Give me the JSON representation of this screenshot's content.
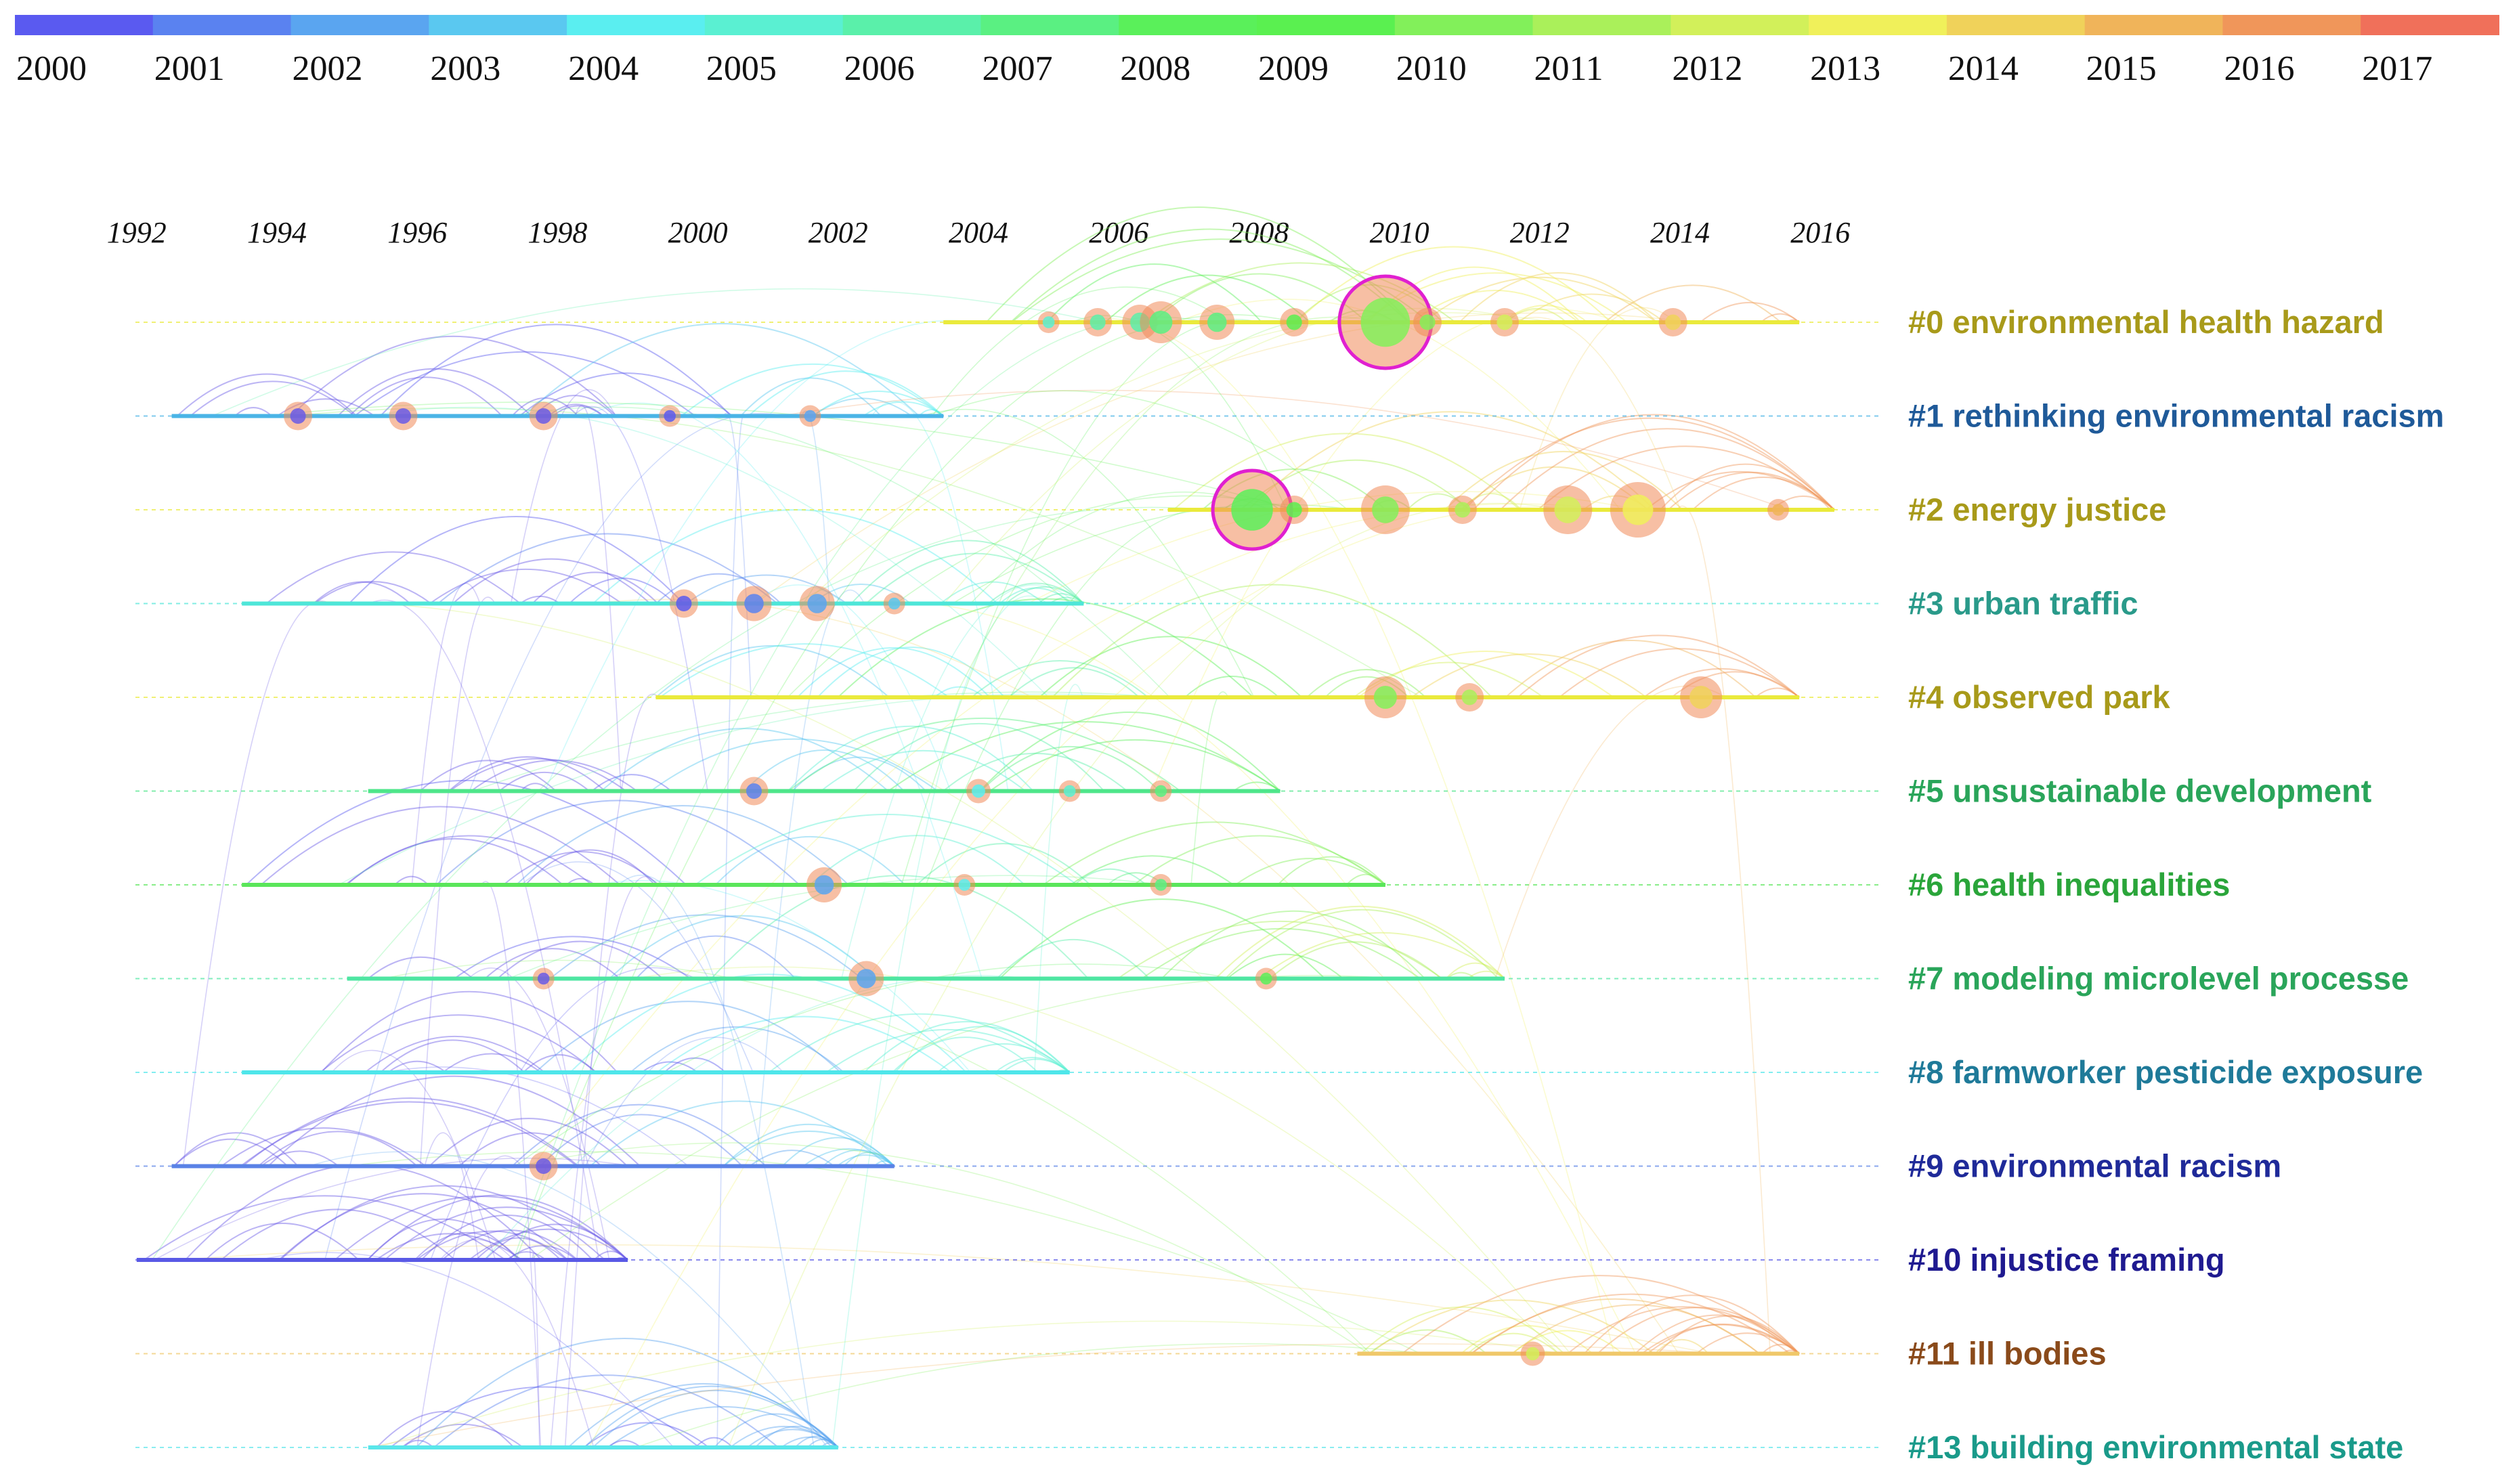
{
  "chart_data": {
    "type": "timeline",
    "legend": {
      "years": [
        "2000",
        "2001",
        "2002",
        "2003",
        "2004",
        "2005",
        "2006",
        "2007",
        "2008",
        "2009",
        "2010",
        "2011",
        "2012",
        "2013",
        "2014",
        "2015",
        "2016",
        "2017"
      ],
      "colors": [
        "#5a5af0",
        "#5a82f0",
        "#5aa5f0",
        "#5ac8f0",
        "#5aeef0",
        "#5af0d2",
        "#5af0aa",
        "#5af082",
        "#5af05a",
        "#5af050",
        "#82f05a",
        "#aaf05a",
        "#d2f05a",
        "#f0f05a",
        "#f0d25a",
        "#f0b45a",
        "#f0965a",
        "#f0705a"
      ]
    },
    "axis_years": [
      "1992",
      "1994",
      "1996",
      "1998",
      "2000",
      "2002",
      "2004",
      "2006",
      "2008",
      "2010",
      "2012",
      "2014",
      "2016"
    ],
    "x_range": [
      1991.5,
      2016.5
    ],
    "clusters": [
      {
        "id": "0",
        "label": "#0 environmental health hazard",
        "color": "#a89a1a",
        "line_color": "#eaea3c",
        "start": 2003.5,
        "end": 2015.7,
        "nodes": [
          {
            "year": 2005.0,
            "size": 1
          },
          {
            "year": 2005.7,
            "size": 1.5
          },
          {
            "year": 2006.3,
            "size": 2
          },
          {
            "year": 2006.6,
            "size": 2.5
          },
          {
            "year": 2007.4,
            "size": 2
          },
          {
            "year": 2008.5,
            "size": 1.5
          },
          {
            "year": 2009.8,
            "size": 6
          },
          {
            "year": 2010.4,
            "size": 1.5
          },
          {
            "year": 2011.5,
            "size": 1.5
          },
          {
            "year": 2013.9,
            "size": 1.5
          }
        ]
      },
      {
        "id": "1",
        "label": "#1 rethinking environmental racism",
        "color": "#1f5a99",
        "line_color": "#4ab4e6",
        "start": 1992.5,
        "end": 2003.5,
        "nodes": [
          {
            "year": 1994.3,
            "size": 1.5
          },
          {
            "year": 1995.8,
            "size": 1.5
          },
          {
            "year": 1997.8,
            "size": 1.5
          },
          {
            "year": 1999.6,
            "size": 1
          },
          {
            "year": 2001.6,
            "size": 1
          }
        ]
      },
      {
        "id": "2",
        "label": "#2 energy justice",
        "color": "#a89a1a",
        "line_color": "#eaea3c",
        "start": 2006.7,
        "end": 2016.2,
        "nodes": [
          {
            "year": 2007.9,
            "size": 5
          },
          {
            "year": 2008.5,
            "size": 1.5
          },
          {
            "year": 2009.8,
            "size": 3
          },
          {
            "year": 2010.9,
            "size": 1.5
          },
          {
            "year": 2012.4,
            "size": 3
          },
          {
            "year": 2013.4,
            "size": 3.5
          },
          {
            "year": 2015.4,
            "size": 1
          }
        ]
      },
      {
        "id": "3",
        "label": "#3 urban traffic",
        "color": "#2a9a8a",
        "line_color": "#4ee6d8",
        "start": 1993.5,
        "end": 2005.5,
        "nodes": [
          {
            "year": 1999.8,
            "size": 1.5
          },
          {
            "year": 2000.8,
            "size": 2
          },
          {
            "year": 2001.7,
            "size": 2
          },
          {
            "year": 2002.8,
            "size": 1
          }
        ]
      },
      {
        "id": "4",
        "label": "#4 observed park",
        "color": "#a89a1a",
        "line_color": "#eaea3c",
        "start": 1999.4,
        "end": 2015.7,
        "nodes": [
          {
            "year": 2009.8,
            "size": 2.5
          },
          {
            "year": 2011.0,
            "size": 1.5
          },
          {
            "year": 2014.3,
            "size": 2.5
          }
        ]
      },
      {
        "id": "5",
        "label": "#5 unsustainable development",
        "color": "#2aa55a",
        "line_color": "#4ee68a",
        "start": 1995.3,
        "end": 2008.3,
        "nodes": [
          {
            "year": 2000.8,
            "size": 1.5
          },
          {
            "year": 2004.0,
            "size": 1.2
          },
          {
            "year": 2005.3,
            "size": 1
          },
          {
            "year": 2006.6,
            "size": 1
          }
        ]
      },
      {
        "id": "6",
        "label": "#6 health inequalities",
        "color": "#2aa53a",
        "line_color": "#5ae65a",
        "start": 1993.5,
        "end": 2009.8,
        "nodes": [
          {
            "year": 2001.8,
            "size": 2
          },
          {
            "year": 2003.8,
            "size": 1
          },
          {
            "year": 2006.6,
            "size": 1
          }
        ]
      },
      {
        "id": "7",
        "label": "#7 modeling microlevel processe",
        "color": "#2aa55a",
        "line_color": "#4ee6a2",
        "start": 1995.0,
        "end": 2011.5,
        "nodes": [
          {
            "year": 2002.4,
            "size": 2
          },
          {
            "year": 1997.8,
            "size": 1
          },
          {
            "year": 2008.1,
            "size": 1
          }
        ]
      },
      {
        "id": "8",
        "label": "#8 farmworker pesticide exposure",
        "color": "#1f7a99",
        "line_color": "#4ee6ea",
        "start": 1993.5,
        "end": 2005.3,
        "nodes": []
      },
      {
        "id": "9",
        "label": "#9 environmental racism",
        "color": "#1f2a99",
        "line_color": "#5a82e6",
        "start": 1992.5,
        "end": 2002.8,
        "nodes": [
          {
            "year": 1997.8,
            "size": 1.5
          }
        ]
      },
      {
        "id": "10",
        "label": "#10 injustice framing",
        "color": "#1f1a90",
        "line_color": "#5a5ae6",
        "start": 1992.0,
        "end": 1999.0,
        "nodes": []
      },
      {
        "id": "11",
        "label": "#11 ill bodies",
        "color": "#8a4a1a",
        "line_color": "#f0c86a",
        "start": 2009.4,
        "end": 2015.7,
        "nodes": [
          {
            "year": 2011.9,
            "size": 1.2
          }
        ]
      },
      {
        "id": "13",
        "label": "#13 building environmental state",
        "color": "#1a9a8a",
        "line_color": "#5ae6ea",
        "start": 1995.3,
        "end": 2002.0,
        "nodes": []
      }
    ]
  }
}
